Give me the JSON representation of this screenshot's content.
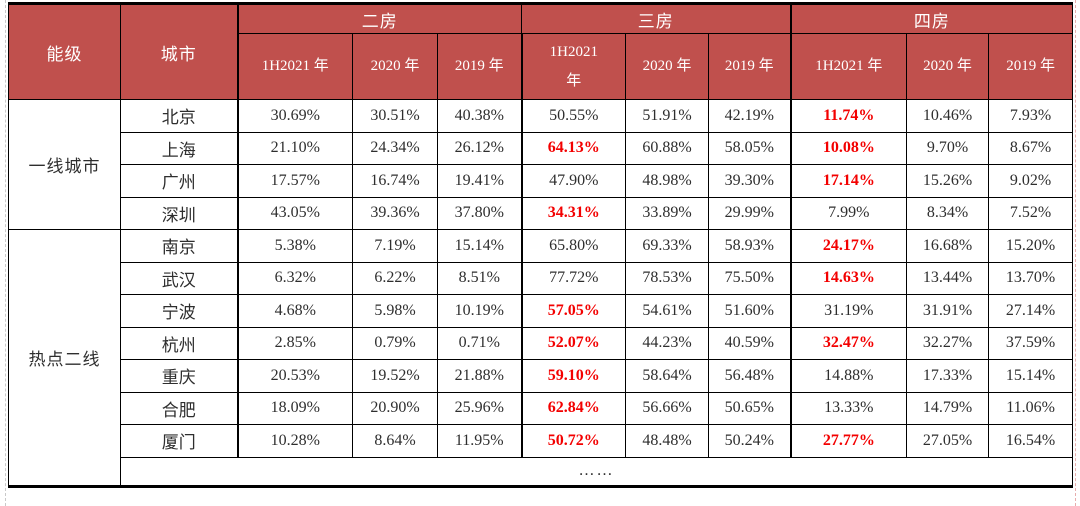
{
  "chart_data": {
    "type": "table",
    "header": {
      "tier_col": "能级",
      "city_col": "城市",
      "groups": [
        {
          "label": "二房",
          "cols": [
            "1H2021 年",
            "2020 年",
            "2019 年"
          ]
        },
        {
          "label": "三房",
          "cols": [
            "1H2021 年",
            "2020 年",
            "2019 年"
          ]
        },
        {
          "label": "四房",
          "cols": [
            "1H2021 年",
            "2020 年",
            "2019 年"
          ]
        }
      ]
    },
    "tiers": [
      {
        "label": "一线城市",
        "merge_into_ellipsis_row": false,
        "cities": [
          {
            "name": "北京",
            "values": [
              "30.69%",
              "30.51%",
              "40.38%",
              "50.55%",
              "51.91%",
              "42.19%",
              "11.74%",
              "10.46%",
              "7.93%"
            ],
            "red": [
              6
            ]
          },
          {
            "name": "上海",
            "values": [
              "21.10%",
              "24.34%",
              "26.12%",
              "64.13%",
              "60.88%",
              "58.05%",
              "10.08%",
              "9.70%",
              "8.67%"
            ],
            "red": [
              3,
              6
            ]
          },
          {
            "name": "广州",
            "values": [
              "17.57%",
              "16.74%",
              "19.41%",
              "47.90%",
              "48.98%",
              "39.30%",
              "17.14%",
              "15.26%",
              "9.02%"
            ],
            "red": [
              6
            ]
          },
          {
            "name": "深圳",
            "values": [
              "43.05%",
              "39.36%",
              "37.80%",
              "34.31%",
              "33.89%",
              "29.99%",
              "7.99%",
              "8.34%",
              "7.52%"
            ],
            "red": [
              3
            ]
          }
        ]
      },
      {
        "label": "热点二线",
        "merge_into_ellipsis_row": true,
        "cities": [
          {
            "name": "南京",
            "values": [
              "5.38%",
              "7.19%",
              "15.14%",
              "65.80%",
              "69.33%",
              "58.93%",
              "24.17%",
              "16.68%",
              "15.20%"
            ],
            "red": [
              6
            ]
          },
          {
            "name": "武汉",
            "values": [
              "6.32%",
              "6.22%",
              "8.51%",
              "77.72%",
              "78.53%",
              "75.50%",
              "14.63%",
              "13.44%",
              "13.70%"
            ],
            "red": [
              6
            ]
          },
          {
            "name": "宁波",
            "values": [
              "4.68%",
              "5.98%",
              "10.19%",
              "57.05%",
              "54.61%",
              "51.60%",
              "31.19%",
              "31.91%",
              "27.14%"
            ],
            "red": [
              3
            ]
          },
          {
            "name": "杭州",
            "values": [
              "2.85%",
              "0.79%",
              "0.71%",
              "52.07%",
              "44.23%",
              "40.59%",
              "32.47%",
              "32.27%",
              "37.59%"
            ],
            "red": [
              3,
              6
            ]
          },
          {
            "name": "重庆",
            "values": [
              "20.53%",
              "19.52%",
              "21.88%",
              "59.10%",
              "58.64%",
              "56.48%",
              "14.88%",
              "17.33%",
              "15.14%"
            ],
            "red": [
              3
            ]
          },
          {
            "name": "合肥",
            "values": [
              "18.09%",
              "20.90%",
              "25.96%",
              "62.84%",
              "56.66%",
              "50.65%",
              "13.33%",
              "14.79%",
              "11.06%"
            ],
            "red": [
              3
            ]
          },
          {
            "name": "厦门",
            "values": [
              "10.28%",
              "8.64%",
              "11.95%",
              "50.72%",
              "48.48%",
              "50.24%",
              "27.77%",
              "27.05%",
              "16.54%"
            ],
            "red": [
              3,
              6
            ]
          }
        ]
      }
    ],
    "ellipsis": "……"
  },
  "colors": {
    "header_bg": "#c0504d",
    "header_text": "#ffffff",
    "highlight_red": "#f30000",
    "body_text": "#2e2e2e",
    "border": "#000000"
  }
}
